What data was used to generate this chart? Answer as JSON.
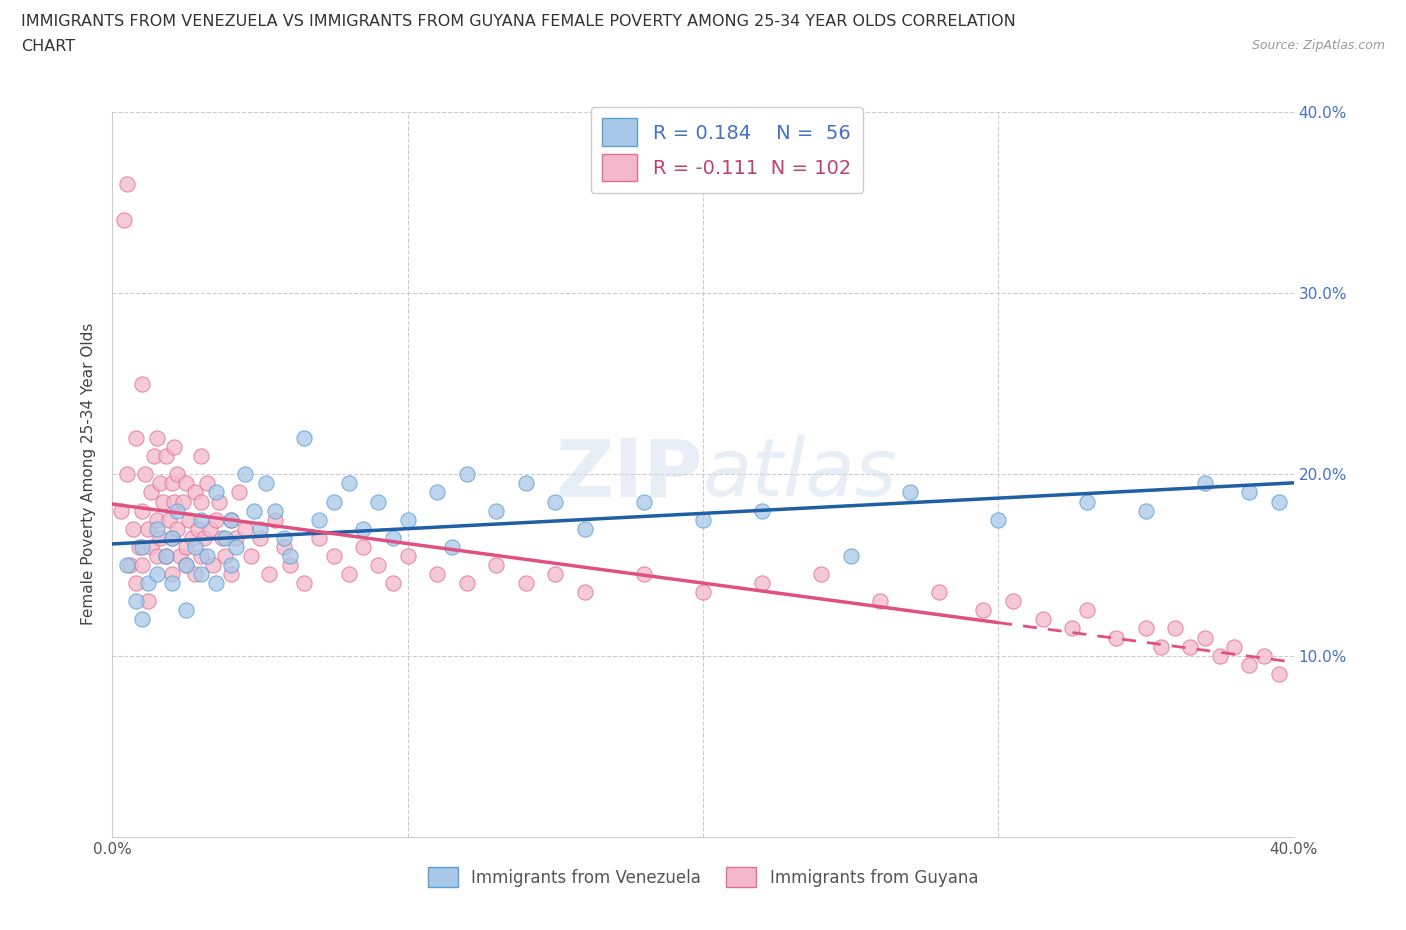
{
  "title_line1": "IMMIGRANTS FROM VENEZUELA VS IMMIGRANTS FROM GUYANA FEMALE POVERTY AMONG 25-34 YEAR OLDS CORRELATION",
  "title_line2": "CHART",
  "source": "Source: ZipAtlas.com",
  "watermark": "ZIPatlas",
  "ylabel": "Female Poverty Among 25-34 Year Olds",
  "xlim": [
    0.0,
    0.4
  ],
  "ylim": [
    0.0,
    0.4
  ],
  "blue_fill": "#a8c8e8",
  "blue_edge": "#5a9fd4",
  "pink_fill": "#f4b8cc",
  "pink_edge": "#e07090",
  "blue_line_color": "#1f5fa6",
  "pink_line_color": "#e05080",
  "R_venezuela": 0.184,
  "N_venezuela": 56,
  "R_guyana": -0.111,
  "N_guyana": 102,
  "legend_label_venezuela": "Immigrants from Venezuela",
  "legend_label_guyana": "Immigrants from Guyana",
  "venezuela_x": [
    0.005,
    0.008,
    0.01,
    0.01,
    0.012,
    0.015,
    0.015,
    0.018,
    0.02,
    0.02,
    0.022,
    0.025,
    0.025,
    0.028,
    0.03,
    0.03,
    0.032,
    0.035,
    0.035,
    0.038,
    0.04,
    0.04,
    0.042,
    0.045,
    0.048,
    0.05,
    0.052,
    0.055,
    0.058,
    0.06,
    0.065,
    0.07,
    0.075,
    0.08,
    0.085,
    0.09,
    0.095,
    0.1,
    0.11,
    0.115,
    0.12,
    0.13,
    0.14,
    0.15,
    0.16,
    0.18,
    0.2,
    0.22,
    0.25,
    0.27,
    0.3,
    0.33,
    0.35,
    0.37,
    0.385,
    0.395
  ],
  "venezuela_y": [
    0.15,
    0.13,
    0.16,
    0.12,
    0.14,
    0.17,
    0.145,
    0.155,
    0.14,
    0.165,
    0.18,
    0.15,
    0.125,
    0.16,
    0.145,
    0.175,
    0.155,
    0.14,
    0.19,
    0.165,
    0.15,
    0.175,
    0.16,
    0.2,
    0.18,
    0.17,
    0.195,
    0.18,
    0.165,
    0.155,
    0.22,
    0.175,
    0.185,
    0.195,
    0.17,
    0.185,
    0.165,
    0.175,
    0.19,
    0.16,
    0.2,
    0.18,
    0.195,
    0.185,
    0.17,
    0.185,
    0.175,
    0.18,
    0.155,
    0.19,
    0.175,
    0.185,
    0.18,
    0.195,
    0.19,
    0.185
  ],
  "guyana_x": [
    0.003,
    0.004,
    0.005,
    0.005,
    0.006,
    0.007,
    0.008,
    0.008,
    0.009,
    0.01,
    0.01,
    0.01,
    0.011,
    0.012,
    0.012,
    0.013,
    0.013,
    0.014,
    0.015,
    0.015,
    0.015,
    0.016,
    0.016,
    0.017,
    0.018,
    0.018,
    0.019,
    0.02,
    0.02,
    0.02,
    0.021,
    0.021,
    0.022,
    0.022,
    0.023,
    0.024,
    0.025,
    0.025,
    0.025,
    0.026,
    0.027,
    0.028,
    0.028,
    0.029,
    0.03,
    0.03,
    0.03,
    0.031,
    0.032,
    0.033,
    0.034,
    0.035,
    0.036,
    0.037,
    0.038,
    0.04,
    0.04,
    0.042,
    0.043,
    0.045,
    0.047,
    0.05,
    0.053,
    0.055,
    0.058,
    0.06,
    0.065,
    0.07,
    0.075,
    0.08,
    0.085,
    0.09,
    0.095,
    0.1,
    0.11,
    0.12,
    0.13,
    0.14,
    0.15,
    0.16,
    0.18,
    0.2,
    0.22,
    0.24,
    0.26,
    0.28,
    0.295,
    0.305,
    0.315,
    0.325,
    0.33,
    0.34,
    0.35,
    0.355,
    0.36,
    0.365,
    0.37,
    0.375,
    0.38,
    0.385,
    0.39,
    0.395
  ],
  "guyana_y": [
    0.18,
    0.34,
    0.2,
    0.36,
    0.15,
    0.17,
    0.14,
    0.22,
    0.16,
    0.18,
    0.25,
    0.15,
    0.2,
    0.17,
    0.13,
    0.19,
    0.16,
    0.21,
    0.175,
    0.155,
    0.22,
    0.195,
    0.165,
    0.185,
    0.155,
    0.21,
    0.175,
    0.165,
    0.195,
    0.145,
    0.185,
    0.215,
    0.17,
    0.2,
    0.155,
    0.185,
    0.16,
    0.195,
    0.15,
    0.175,
    0.165,
    0.145,
    0.19,
    0.17,
    0.155,
    0.185,
    0.21,
    0.165,
    0.195,
    0.17,
    0.15,
    0.175,
    0.185,
    0.165,
    0.155,
    0.175,
    0.145,
    0.165,
    0.19,
    0.17,
    0.155,
    0.165,
    0.145,
    0.175,
    0.16,
    0.15,
    0.14,
    0.165,
    0.155,
    0.145,
    0.16,
    0.15,
    0.14,
    0.155,
    0.145,
    0.14,
    0.15,
    0.14,
    0.145,
    0.135,
    0.145,
    0.135,
    0.14,
    0.145,
    0.13,
    0.135,
    0.125,
    0.13,
    0.12,
    0.115,
    0.125,
    0.11,
    0.115,
    0.105,
    0.115,
    0.105,
    0.11,
    0.1,
    0.105,
    0.095,
    0.1,
    0.09
  ]
}
